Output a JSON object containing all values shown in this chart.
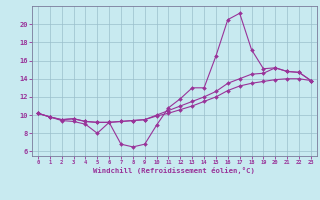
{
  "title": "",
  "xlabel": "Windchill (Refroidissement éolien,°C)",
  "ylabel": "",
  "bg_color": "#c8eaf0",
  "line_color": "#993399",
  "grid_color": "#9bbfcc",
  "xlim": [
    -0.5,
    23.5
  ],
  "ylim": [
    5.5,
    22.0
  ],
  "xticks": [
    0,
    1,
    2,
    3,
    4,
    5,
    6,
    7,
    8,
    9,
    10,
    11,
    12,
    13,
    14,
    15,
    16,
    17,
    18,
    19,
    20,
    21,
    22,
    23
  ],
  "yticks": [
    6,
    8,
    10,
    12,
    14,
    16,
    18,
    20
  ],
  "line1": [
    10.2,
    9.8,
    9.4,
    9.3,
    9.0,
    8.0,
    9.2,
    6.8,
    6.5,
    6.8,
    8.9,
    10.8,
    11.8,
    13.0,
    13.0,
    16.5,
    20.5,
    21.2,
    17.2,
    15.1,
    15.2,
    14.8,
    14.7,
    13.8
  ],
  "line2": [
    10.2,
    9.8,
    9.5,
    9.6,
    9.3,
    9.2,
    9.2,
    9.3,
    9.4,
    9.5,
    10.0,
    10.5,
    11.0,
    11.5,
    12.0,
    12.6,
    13.5,
    14.0,
    14.5,
    14.6,
    15.2,
    14.8,
    14.7,
    13.8
  ],
  "line3": [
    10.2,
    9.8,
    9.5,
    9.6,
    9.3,
    9.2,
    9.2,
    9.3,
    9.4,
    9.5,
    9.9,
    10.2,
    10.6,
    11.0,
    11.5,
    12.0,
    12.7,
    13.2,
    13.5,
    13.7,
    13.9,
    14.0,
    14.0,
    13.8
  ]
}
